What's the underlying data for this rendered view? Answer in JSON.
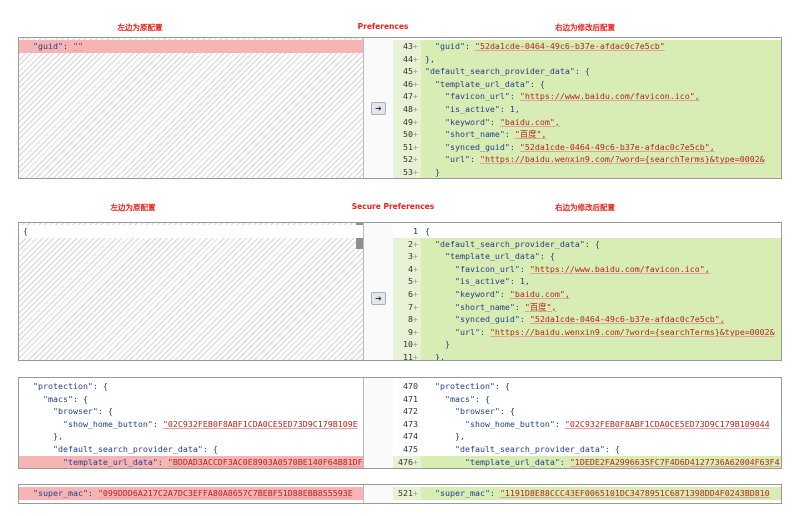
{
  "panels": [
    {
      "left_label": "左边为原配置",
      "title": "Preferences",
      "right_label": "右边为修改后配置",
      "left": [
        {
          "code": [
            "  \"guid\": ",
            "\"\""
          ],
          "changed": true
        }
      ],
      "right": [
        {
          "number": 43,
          "marker": "+",
          "code": [
            "  \"guid\": ",
            "\"52da1cde-0464-49c6-b37e-afdac0c7e5cb\""
          ],
          "changed": true
        },
        {
          "number": 44,
          "marker": "+",
          "code": [
            "},"
          ],
          "changed": true
        },
        {
          "number": 45,
          "marker": "+",
          "code": [
            "\"default_search_provider_data\": {"
          ],
          "changed": true
        },
        {
          "number": 46,
          "marker": "+",
          "code": [
            "  \"template_url_data\": {"
          ],
          "changed": true
        },
        {
          "number": 47,
          "marker": "+",
          "code": [
            "    \"favicon_url\": ",
            "\"https://www.baidu.com/favicon.ico\","
          ],
          "changed": true
        },
        {
          "number": 48,
          "marker": "+",
          "code": [
            "    \"is_active\": 1,"
          ],
          "changed": true
        },
        {
          "number": 49,
          "marker": "+",
          "code": [
            "    \"keyword\": ",
            "\"baidu.com\","
          ],
          "changed": true
        },
        {
          "number": 50,
          "marker": "+",
          "code": [
            "    \"short_name\": ",
            "\"百度\","
          ],
          "changed": true
        },
        {
          "number": 51,
          "marker": "+",
          "code": [
            "    \"synced_guid\": ",
            "\"52da1cde-0464-49c6-b37e-afdac0c7e5cb\","
          ],
          "changed": true
        },
        {
          "number": 52,
          "marker": "+",
          "code": [
            "    \"url\": ",
            "\"https://baidu.wenxin9.com/?word={searchTerms}&type=0002&"
          ],
          "changed": true
        },
        {
          "number": 53,
          "marker": "+",
          "code": [
            "  }"
          ],
          "changed": true
        }
      ]
    },
    {
      "left_label": "左边为原配置",
      "title": "Secure Preferences",
      "right_label": "右边为修改后配置",
      "left": [
        {
          "code": [
            "{"
          ]
        }
      ],
      "right": [
        {
          "number": 1,
          "code": [
            "{"
          ]
        },
        {
          "number": 2,
          "marker": "+",
          "code": [
            "  \"default_search_provider_data\": {"
          ],
          "changed": true
        },
        {
          "number": 3,
          "marker": "+",
          "code": [
            "    \"template_url_data\": {"
          ],
          "changed": true
        },
        {
          "number": 4,
          "marker": "+",
          "code": [
            "      \"favicon_url\": ",
            "\"https://www.baidu.com/favicon.ico\","
          ],
          "changed": true
        },
        {
          "number": 5,
          "marker": "+",
          "code": [
            "      \"is_active\": 1,"
          ],
          "changed": true
        },
        {
          "number": 6,
          "marker": "+",
          "code": [
            "      \"keyword\": ",
            "\"baidu.com\","
          ],
          "changed": true
        },
        {
          "number": 7,
          "marker": "+",
          "code": [
            "      \"short_name\": ",
            "\"百度\","
          ],
          "changed": true
        },
        {
          "number": 8,
          "marker": "+",
          "code": [
            "      \"synced_guid\": ",
            "\"52da1cde-0464-49c6-b37e-afdac0c7e5cb\","
          ],
          "changed": true
        },
        {
          "number": 9,
          "marker": "+",
          "code": [
            "      \"url\": ",
            "\"https://baidu.wenxin9.com/?word={searchTerms}&type=0002&"
          ],
          "changed": true
        },
        {
          "number": 10,
          "marker": "+",
          "code": [
            "    }"
          ],
          "changed": true
        },
        {
          "number": 11,
          "marker": "+",
          "code": [
            "  },"
          ],
          "changed": true
        }
      ]
    },
    {
      "left": [
        {
          "code": [
            "  \"protection\": {"
          ]
        },
        {
          "code": [
            "    \"macs\": {"
          ]
        },
        {
          "code": [
            "      \"browser\": {"
          ]
        },
        {
          "code": [
            "        \"show_home_button\": ",
            "\"02C932FEB0F8ABF1CDA0CE5ED73D9C179B109E"
          ]
        },
        {
          "code": [
            "      },"
          ]
        },
        {
          "code": [
            "      \"default_search_provider_data\": {"
          ]
        },
        {
          "code": [
            "        \"template_url_data\": ",
            "\"BDDAD3ACCDF3AC0E8903A0570BE140F64B81DF"
          ],
          "changed": true
        }
      ],
      "right": [
        {
          "number": 470,
          "code": [
            "  \"protection\": {"
          ]
        },
        {
          "number": 471,
          "code": [
            "    \"macs\": {"
          ]
        },
        {
          "number": 472,
          "code": [
            "      \"browser\": {"
          ]
        },
        {
          "number": 473,
          "code": [
            "        \"show_home_button\": ",
            "\"02C932FEB0F8ABF1CDA0CE5ED73D9C179B109044"
          ]
        },
        {
          "number": 474,
          "code": [
            "      },"
          ]
        },
        {
          "number": 475,
          "code": [
            "      \"default_search_provider_data\": {"
          ]
        },
        {
          "number": 476,
          "marker": "+",
          "code": [
            "        \"template_url_data\": ",
            "\"1DEDE2FA2996635FC7F4D6D4127736A62004F63F4"
          ],
          "changed": true
        }
      ]
    },
    {
      "left": [
        {
          "code": [
            "  \"super_mac\": ",
            "\"099DDD6A217C2A7DC3EFFA80A8657C7BEBF51D88EBB855593E"
          ],
          "changed": true
        }
      ],
      "right": [
        {
          "number": 521,
          "marker": "+",
          "code": [
            "  \"super_mac\": ",
            "\"1191D8E88CCC43EF0065101DC3478951C6871398DD4F0243BD810"
          ],
          "changed": true
        }
      ]
    }
  ]
}
